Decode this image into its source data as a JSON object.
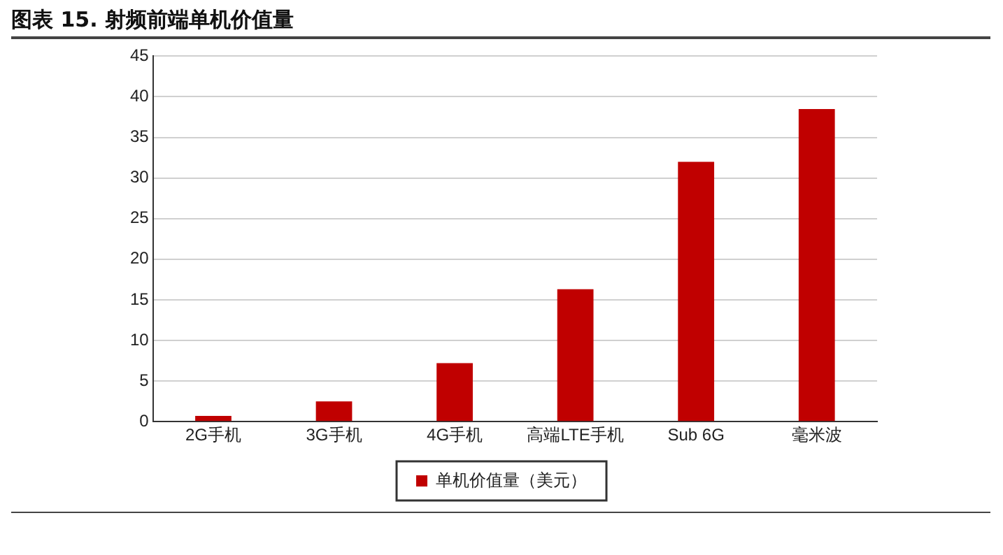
{
  "chart_data": {
    "type": "bar",
    "title": "图表 15. 射频前端单机价值量",
    "categories": [
      "2G手机",
      "3G手机",
      "4G手机",
      "高端LTE手机",
      "Sub 6G",
      "毫米波"
    ],
    "series": [
      {
        "name": "单机价值量（美元）",
        "color": "#c00000",
        "values": [
          0.7,
          2.5,
          7.2,
          16.3,
          32.0,
          38.5
        ]
      }
    ],
    "ylim": [
      0,
      45
    ],
    "yticks": [
      0,
      5,
      10,
      15,
      20,
      25,
      30,
      35,
      40,
      45
    ],
    "grid": "y",
    "legend": "bottom"
  }
}
